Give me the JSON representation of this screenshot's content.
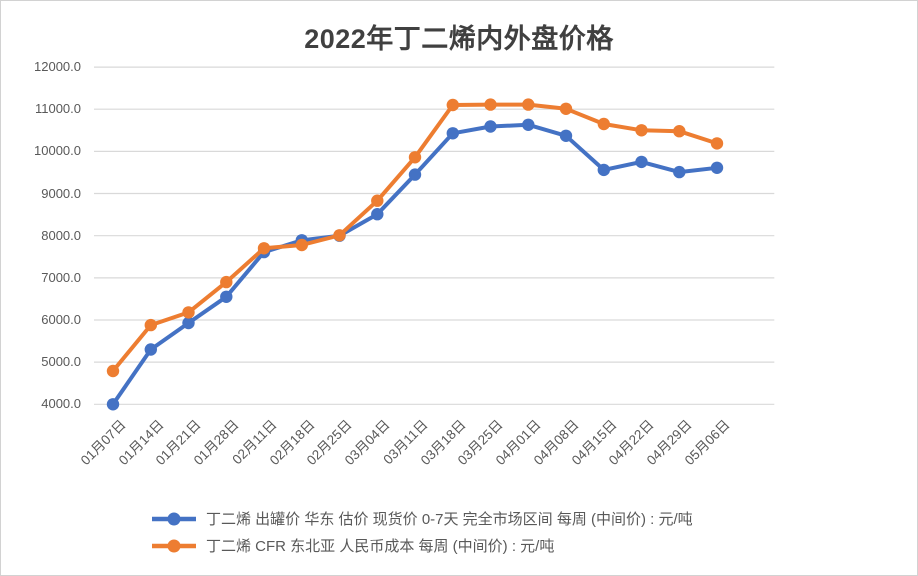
{
  "title": "2022年丁二烯内外盘价格",
  "colors": {
    "series1": "#4472C4",
    "series2": "#ED7D31",
    "grid": "#D9D9D9",
    "axis_text": "#595959",
    "title_text": "#404040",
    "background": "#FFFFFF",
    "border": "#D2D2D2"
  },
  "chart_data": {
    "type": "line",
    "title": "2022年丁二烯内外盘价格",
    "categories": [
      "01月07日",
      "01月14日",
      "01月21日",
      "01月28日",
      "02月11日",
      "02月18日",
      "02月25日",
      "03月04日",
      "03月11日",
      "03月18日",
      "03月25日",
      "04月01日",
      "04月08日",
      "04月15日",
      "04月22日",
      "04月29日",
      "05月06日"
    ],
    "series": [
      {
        "name": "丁二烯 出罐价 华东 估价 现货价 0-7天 完全市场区间 每周 (中间价) : 元/吨",
        "color": "#4472C4",
        "marker": "circle",
        "values": [
          4000,
          5300,
          5930,
          6550,
          7610,
          7890,
          8000,
          8510,
          9450,
          10430,
          10590,
          10630,
          10370,
          9560,
          9750,
          9510,
          9610
        ]
      },
      {
        "name": "丁二烯 CFR 东北亚 人民币成本 每周 (中间价) : 元/吨",
        "color": "#ED7D31",
        "marker": "circle",
        "values": [
          4790,
          5880,
          6180,
          6900,
          7700,
          7780,
          8010,
          8830,
          9860,
          11100,
          11110,
          11110,
          11010,
          10650,
          10500,
          10480,
          10190
        ]
      }
    ],
    "ylim": [
      4000,
      12000
    ],
    "ytick_step": 1000,
    "ytick_labels": [
      "4000.0",
      "5000.0",
      "6000.0",
      "7000.0",
      "8000.0",
      "9000.0",
      "10000.0",
      "11000.0",
      "12000.0"
    ],
    "xlabel": "",
    "ylabel": "",
    "grid": "horizontal",
    "legend_position": "bottom-left"
  }
}
